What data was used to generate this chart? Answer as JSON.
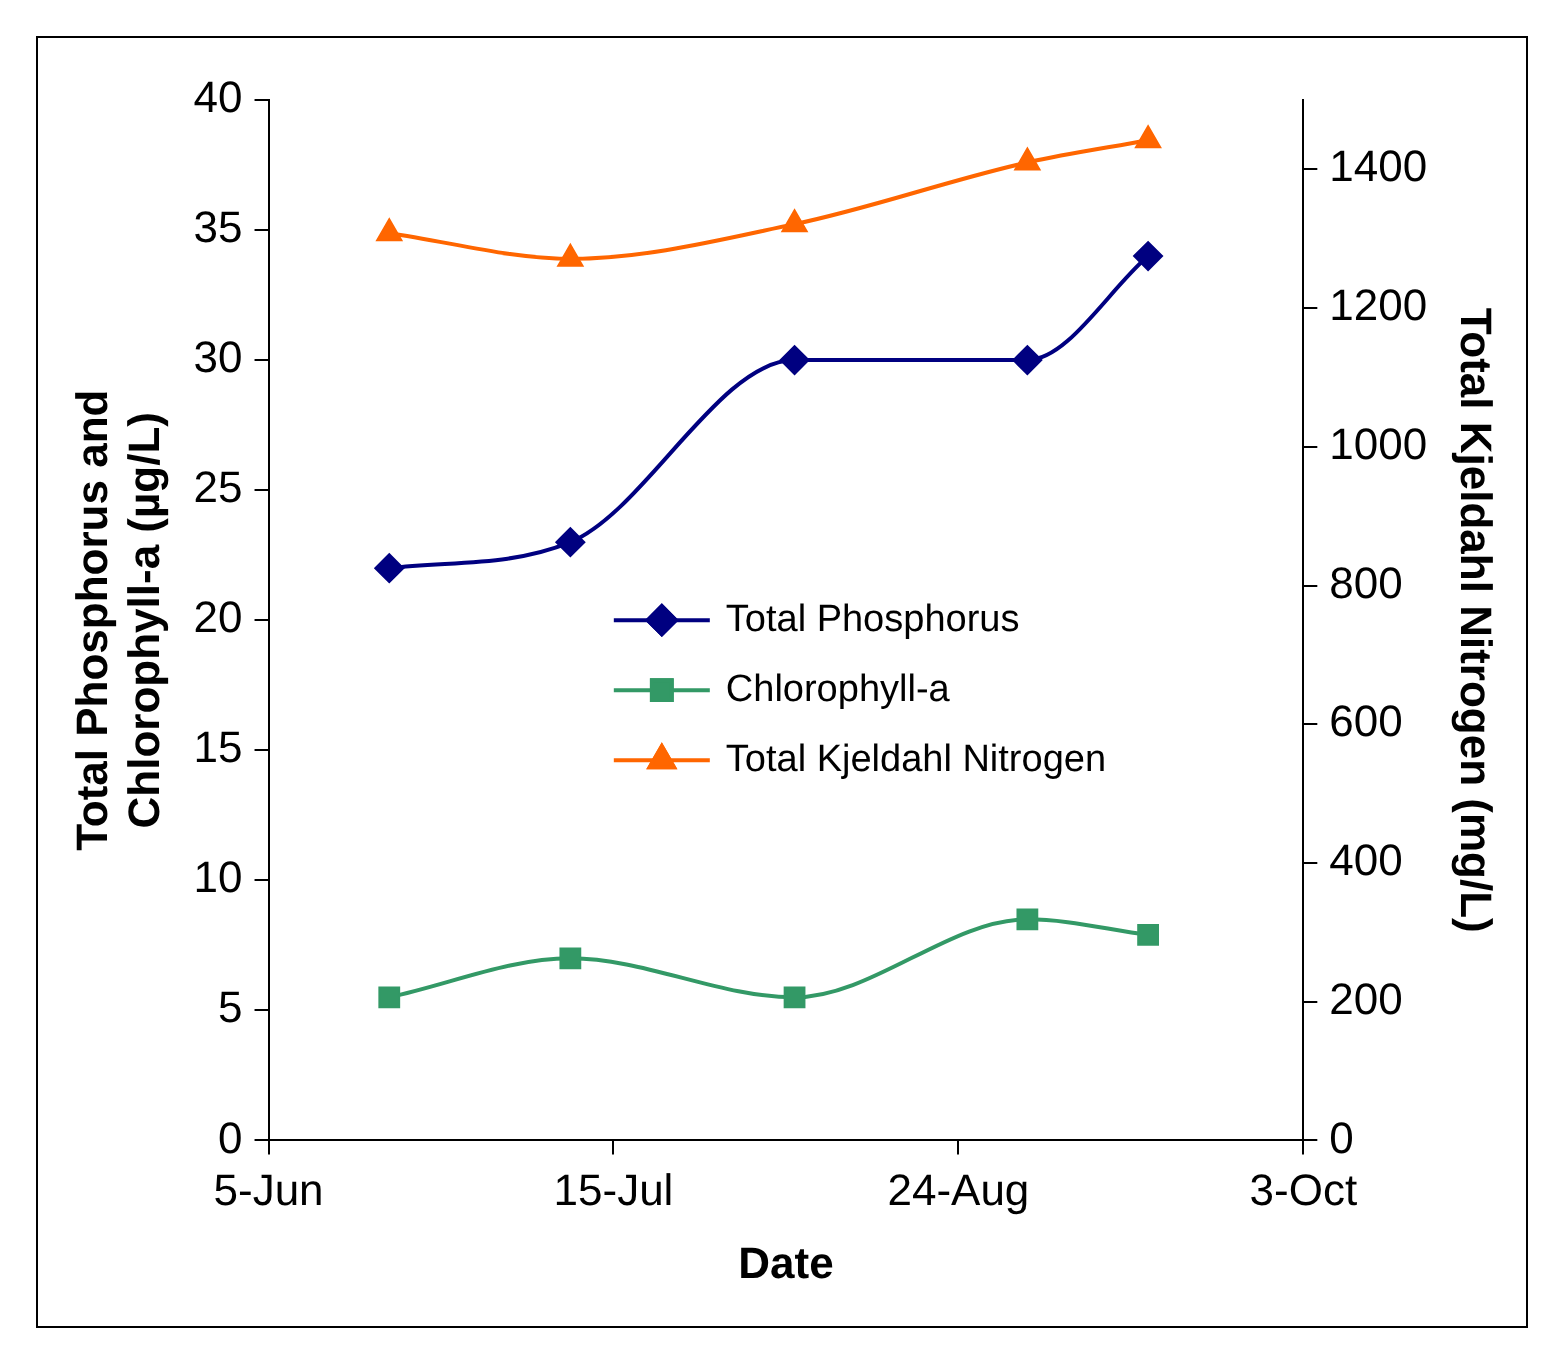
{
  "chart_data": {
    "type": "line",
    "xlabel": "Date",
    "ylabel": "Total Phosphorus and Chlorophyll-a (µg/L)",
    "y2label": "Total Kjeldahl Nitrogen (mg/L)",
    "x": [
      "--06-19",
      "--07-10",
      "--08-05",
      "--09-01",
      "--09-15"
    ],
    "series": [
      {
        "name": "Total Phosphorus",
        "color": "#000080",
        "marker": "diamond",
        "values": [
          22,
          23,
          30,
          30,
          34
        ]
      },
      {
        "name": "Chlorophyll-a",
        "color": "#339966",
        "marker": "square",
        "values": [
          5.5,
          7,
          5.5,
          8.5,
          7.9
        ]
      },
      {
        "name": "Total Kjeldahl Nitrogen",
        "color": "#ff6600",
        "marker": "triangle",
        "axis": "y2",
        "values": [
          1308,
          1271,
          1321,
          1410,
          1442
        ]
      }
    ],
    "xlim": [
      "--06-05",
      "--10-03"
    ],
    "xticks": [
      {
        "value": "--06-05",
        "label": "5-Jun"
      },
      {
        "value": "--07-15",
        "label": "15-Jul"
      },
      {
        "value": "--08-24",
        "label": "24-Aug"
      },
      {
        "value": "--10-03",
        "label": "3-Oct"
      }
    ],
    "ylim": [
      0,
      40
    ],
    "yticks": [
      0,
      5,
      10,
      15,
      20,
      25,
      30,
      35,
      40
    ],
    "y2lim": [
      0,
      1500
    ],
    "y2ticks": [
      0,
      200,
      400,
      600,
      800,
      1000,
      1200,
      1400
    ],
    "grid": false,
    "legend": "center",
    "line_style": "solid"
  }
}
